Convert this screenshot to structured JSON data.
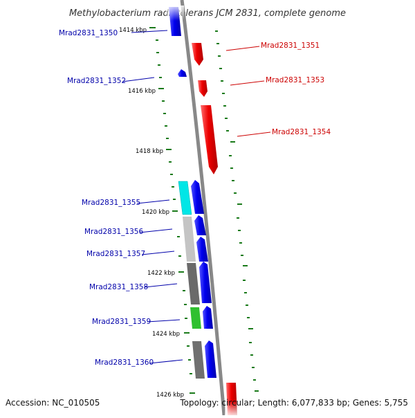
{
  "title": "Methylobacterium radiotolerans JCM 2831, complete genome",
  "footer": {
    "accession": "Accession: NC_010505",
    "topology": "Topology: circular; Length: 6,077,833 bp; Genes: 5,755"
  },
  "colors": {
    "forward": "#ee0000",
    "reverse": "#0000dd",
    "backbone": "#888888",
    "tick": "#1a7a1a",
    "fwd_label": "#cc0000",
    "rev_label": "#0000aa"
  },
  "ticks": [
    "1414 kbp",
    "1416 kbp",
    "1418 kbp",
    "1420 kbp",
    "1422 kbp",
    "1424 kbp",
    "1426 kbp"
  ],
  "genes": [
    {
      "id": "Mrad2831_1350",
      "strand": "reverse"
    },
    {
      "id": "Mrad2831_1351",
      "strand": "forward"
    },
    {
      "id": "Mrad2831_1352",
      "strand": "reverse"
    },
    {
      "id": "Mrad2831_1353",
      "strand": "forward"
    },
    {
      "id": "Mrad2831_1354",
      "strand": "forward"
    },
    {
      "id": "Mrad2831_1355",
      "strand": "reverse"
    },
    {
      "id": "Mrad2831_1356",
      "strand": "reverse"
    },
    {
      "id": "Mrad2831_1357",
      "strand": "reverse"
    },
    {
      "id": "Mrad2831_1358",
      "strand": "reverse"
    },
    {
      "id": "Mrad2831_1359",
      "strand": "reverse"
    },
    {
      "id": "Mrad2831_1360",
      "strand": "reverse"
    }
  ]
}
